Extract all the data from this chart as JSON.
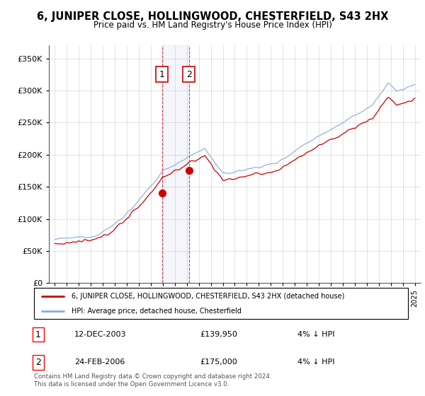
{
  "title": "6, JUNIPER CLOSE, HOLLINGWOOD, CHESTERFIELD, S43 2HX",
  "subtitle": "Price paid vs. HM Land Registry's House Price Index (HPI)",
  "sale1_price": 139950,
  "sale1_label": "1",
  "sale1_x": 2003.92,
  "sale2_price": 175000,
  "sale2_label": "2",
  "sale2_x": 2006.17,
  "legend_line1": "6, JUNIPER CLOSE, HOLLINGWOOD, CHESTERFIELD, S43 2HX (detached house)",
  "legend_line2": "HPI: Average price, detached house, Chesterfield",
  "table_row1": [
    "1",
    "12-DEC-2003",
    "£139,950",
    "4% ↓ HPI"
  ],
  "table_row2": [
    "2",
    "24-FEB-2006",
    "£175,000",
    "4% ↓ HPI"
  ],
  "footnote": "Contains HM Land Registry data © Crown copyright and database right 2024.\nThis data is licensed under the Open Government Licence v3.0.",
  "ylim": [
    0,
    370000
  ],
  "xlim_start": 1994.5,
  "xlim_end": 2025.5,
  "red_color": "#cc0000",
  "blue_color": "#88aadd",
  "background_color": "#ffffff",
  "grid_color": "#cccccc"
}
